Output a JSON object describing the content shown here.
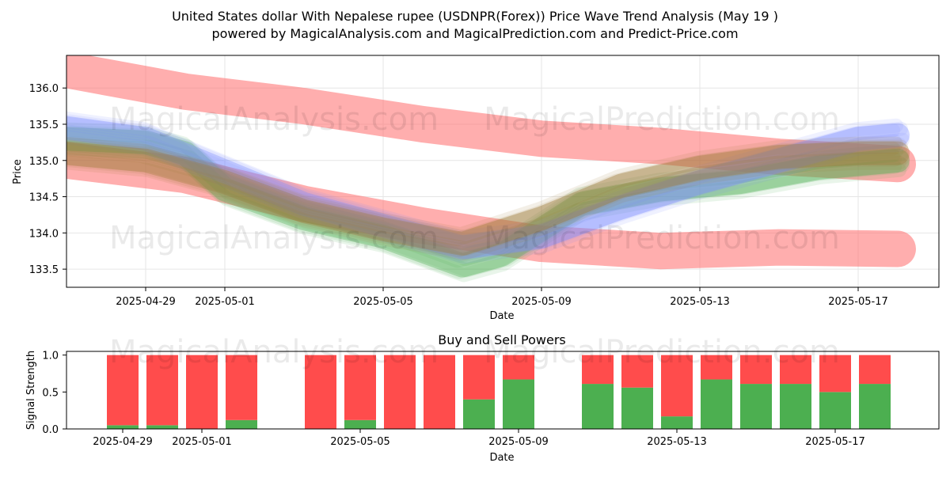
{
  "title_line1": "United States dollar With Nepalese rupee (USDNPR(Forex)) Price Wave Trend Analysis (May 19 )",
  "title_line2": "powered by MagicalAnalysis.com and MagicalPrediction.com and Predict-Price.com",
  "watermarks": [
    "MagicalAnalysis.com",
    "MagicalPrediction.com"
  ],
  "colors": {
    "band_red": "#ff6b6b",
    "wave_green": "#4caf50",
    "wave_blue": "#7b8cff",
    "wave_brown": "#a07a3c",
    "buy": "#4caf50",
    "sell": "#ff4c4c"
  },
  "chart_data": [
    {
      "type": "line",
      "title": "",
      "xlabel": "Date",
      "ylabel": "Price",
      "x_tick_labels": [
        "2025-04-29",
        "2025-05-01",
        "2025-05-05",
        "2025-05-09",
        "2025-05-13",
        "2025-05-17"
      ],
      "y_tick_labels": [
        "133.5",
        "134.0",
        "134.5",
        "135.0",
        "135.5",
        "136.0"
      ],
      "ylim": [
        133.25,
        136.45
      ],
      "grid": true,
      "series": [
        {
          "style": "band",
          "color": "band_red",
          "x": [
            "2025-04-27",
            "2025-04-30",
            "2025-05-03",
            "2025-05-06",
            "2025-05-09",
            "2025-05-12",
            "2025-05-15",
            "2025-05-18"
          ],
          "y": [
            136.25,
            135.95,
            135.75,
            135.5,
            135.3,
            135.2,
            135.05,
            134.95
          ]
        },
        {
          "style": "band",
          "color": "band_red",
          "x": [
            "2025-04-27",
            "2025-04-30",
            "2025-05-03",
            "2025-05-06",
            "2025-05-09",
            "2025-05-12",
            "2025-05-15",
            "2025-05-18"
          ],
          "y": [
            135.0,
            134.8,
            134.4,
            134.1,
            133.85,
            133.75,
            133.8,
            133.78
          ]
        },
        {
          "style": "wave",
          "color": "wave_green",
          "x": [
            "2025-04-27",
            "2025-04-29",
            "2025-04-30",
            "2025-05-01",
            "2025-05-03",
            "2025-05-05",
            "2025-05-07",
            "2025-05-08",
            "2025-05-10",
            "2025-05-12",
            "2025-05-14",
            "2025-05-16",
            "2025-05-18"
          ],
          "y": [
            135.3,
            135.25,
            135.1,
            134.6,
            134.2,
            133.95,
            133.55,
            133.7,
            134.4,
            134.6,
            134.7,
            134.9,
            135.0
          ]
        },
        {
          "style": "wave",
          "color": "wave_blue",
          "x": [
            "2025-04-27",
            "2025-04-29",
            "2025-05-01",
            "2025-05-03",
            "2025-05-05",
            "2025-05-07",
            "2025-05-09",
            "2025-05-11",
            "2025-05-13",
            "2025-05-15",
            "2025-05-17",
            "2025-05-18"
          ],
          "y": [
            135.45,
            135.3,
            134.85,
            134.4,
            134.1,
            133.8,
            133.95,
            134.35,
            134.7,
            135.0,
            135.3,
            135.35
          ]
        },
        {
          "style": "wave",
          "color": "wave_brown",
          "x": [
            "2025-04-27",
            "2025-04-29",
            "2025-05-01",
            "2025-05-03",
            "2025-05-05",
            "2025-05-07",
            "2025-05-09",
            "2025-05-11",
            "2025-05-13",
            "2025-05-15",
            "2025-05-17",
            "2025-05-18"
          ],
          "y": [
            135.1,
            135.0,
            134.7,
            134.3,
            134.05,
            133.85,
            134.2,
            134.65,
            134.9,
            135.05,
            135.1,
            135.1
          ]
        }
      ]
    },
    {
      "type": "bar",
      "stacked": true,
      "title": "Buy and Sell Powers",
      "xlabel": "Date",
      "ylabel": "Signal Strength",
      "x_tick_labels": [
        "2025-04-29",
        "2025-05-01",
        "2025-05-05",
        "2025-05-09",
        "2025-05-13",
        "2025-05-17"
      ],
      "y_tick_labels": [
        "0.0",
        "0.5",
        "1.0"
      ],
      "ylim": [
        0,
        1.05
      ],
      "categories": [
        "2025-04-29",
        "2025-04-30",
        "2025-05-01",
        "2025-05-02",
        "2025-05-04",
        "2025-05-05",
        "2025-05-06",
        "2025-05-07",
        "2025-05-08",
        "2025-05-09",
        "2025-05-11",
        "2025-05-12",
        "2025-05-13",
        "2025-05-14",
        "2025-05-15",
        "2025-05-16",
        "2025-05-17",
        "2025-05-18"
      ],
      "series": [
        {
          "name": "Buy",
          "color": "buy",
          "values": [
            0.05,
            0.05,
            0.0,
            0.12,
            0.0,
            0.12,
            0.0,
            0.0,
            0.4,
            0.67,
            0.61,
            0.56,
            0.17,
            0.67,
            0.61,
            0.61,
            0.5,
            0.61
          ]
        },
        {
          "name": "Sell",
          "color": "sell",
          "values": [
            0.95,
            0.95,
            1.0,
            0.88,
            1.0,
            0.88,
            1.0,
            1.0,
            0.6,
            0.33,
            0.39,
            0.44,
            0.83,
            0.33,
            0.39,
            0.39,
            0.5,
            0.39
          ]
        }
      ]
    }
  ]
}
